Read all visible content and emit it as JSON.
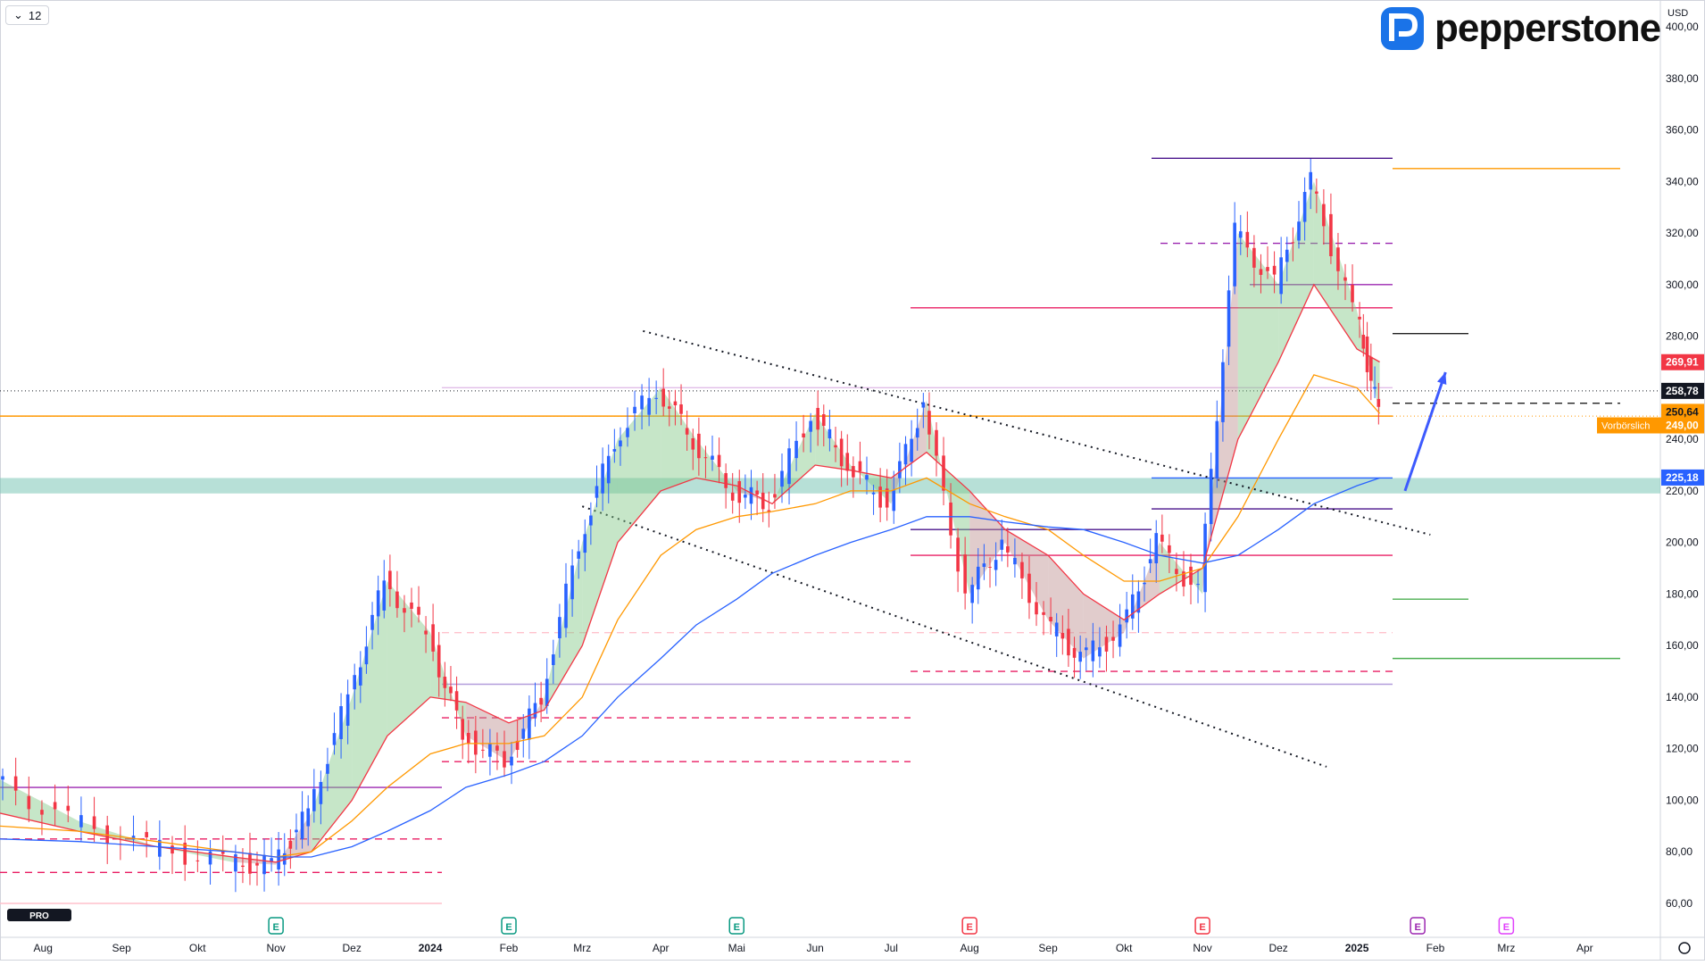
{
  "toolbar": {
    "interval_label": "12"
  },
  "brand": {
    "logo_text": "pepperstone",
    "color": "#1a73e8"
  },
  "badges": {
    "pro_text": "PRO"
  },
  "price_axis": {
    "currency_label": "USD",
    "ticks": [
      "400,00",
      "380,00",
      "360,00",
      "340,00",
      "320,00",
      "300,00",
      "280,00",
      "260,00",
      "240,00",
      "220,00",
      "200,00",
      "180,00",
      "160,00",
      "140,00",
      "120,00",
      "100,00",
      "80,00",
      "60,00"
    ],
    "price_labels": {
      "red": "269,91",
      "black": "258,78",
      "orange_top": "250,64",
      "orange_bottom": "249,00",
      "blue": "225,18",
      "premarket": "Vorbörslich"
    }
  },
  "time_axis": [
    "Aug",
    "Sep",
    "Okt",
    "Nov",
    "Dez",
    "2024",
    "Feb",
    "Mrz",
    "Apr",
    "Mai",
    "Jun",
    "Jul",
    "Aug",
    "Sep",
    "Okt",
    "Nov",
    "Dez",
    "2025",
    "Feb",
    "Mrz",
    "Apr"
  ],
  "event_markers": [
    "E",
    "E",
    "E",
    "E",
    "E",
    "E",
    "E"
  ],
  "colors": {
    "up": "#2962ff",
    "down": "#f23645",
    "sma_red": "#f23645",
    "sma_orange": "#ff9800",
    "sma_blue": "#2962ff",
    "zone": "#7cc6b7"
  },
  "chart_data": {
    "type": "line",
    "x": [
      "2023-07-15",
      "2023-08-15",
      "2023-09-15",
      "2023-10-15",
      "2023-11-01",
      "2023-11-15",
      "2023-12-01",
      "2023-12-15",
      "2024-01-01",
      "2024-01-15",
      "2024-02-01",
      "2024-02-15",
      "2024-03-01",
      "2024-03-15",
      "2024-04-01",
      "2024-04-15",
      "2024-05-01",
      "2024-05-15",
      "2024-06-01",
      "2024-06-15",
      "2024-07-01",
      "2024-07-15",
      "2024-08-01",
      "2024-08-15",
      "2024-09-01",
      "2024-09-15",
      "2024-10-01",
      "2024-10-15",
      "2024-11-01",
      "2024-11-15",
      "2024-12-01",
      "2024-12-15",
      "2025-01-01",
      "2025-01-10"
    ],
    "series": [
      {
        "values": [
          108,
          92,
          82,
          76,
          75,
          95,
          140,
          185,
          165,
          125,
          115,
          140,
          200,
          240,
          260,
          240,
          220,
          215,
          250,
          230,
          215,
          255,
          180,
          200,
          170,
          155,
          165,
          200,
          180,
          320,
          300,
          340,
          290,
          250
        ]
      },
      {
        "values": [
          95,
          88,
          82,
          78,
          76,
          80,
          100,
          125,
          140,
          138,
          130,
          135,
          160,
          200,
          220,
          225,
          222,
          215,
          230,
          228,
          225,
          235,
          220,
          205,
          195,
          180,
          170,
          180,
          190,
          240,
          270,
          300,
          275,
          270
        ]
      },
      {
        "values": [
          90,
          88,
          84,
          80,
          78,
          80,
          92,
          105,
          118,
          122,
          122,
          125,
          140,
          170,
          195,
          205,
          210,
          212,
          215,
          220,
          220,
          225,
          215,
          210,
          205,
          195,
          185,
          185,
          190,
          210,
          240,
          265,
          260,
          250
        ]
      },
      {
        "values": [
          85,
          84,
          82,
          80,
          78,
          78,
          82,
          88,
          96,
          105,
          110,
          115,
          125,
          140,
          155,
          168,
          178,
          188,
          195,
          200,
          205,
          210,
          210,
          208,
          206,
          205,
          200,
          195,
          192,
          195,
          205,
          215,
          222,
          225
        ]
      }
    ],
    "ylim": [
      50,
      405
    ],
    "horizontal_levels": [
      349,
      345,
      316,
      300,
      291,
      281,
      260,
      254,
      249,
      225,
      213,
      205,
      195,
      178,
      165,
      155,
      150,
      145,
      132,
      115,
      105,
      85,
      72,
      60
    ],
    "trendlines": [
      {
        "from": [
          "2024-03-25",
          282
        ],
        "to": [
          "2025-01-30",
          203
        ]
      },
      {
        "from": [
          "2024-03-01",
          214
        ],
        "to": [
          "2024-12-20",
          113
        ]
      }
    ],
    "zone": [
      219,
      225
    ],
    "arrow": {
      "from": [
        "2025-01-20",
        220
      ],
      "to": [
        "2025-02-05",
        266
      ]
    }
  }
}
